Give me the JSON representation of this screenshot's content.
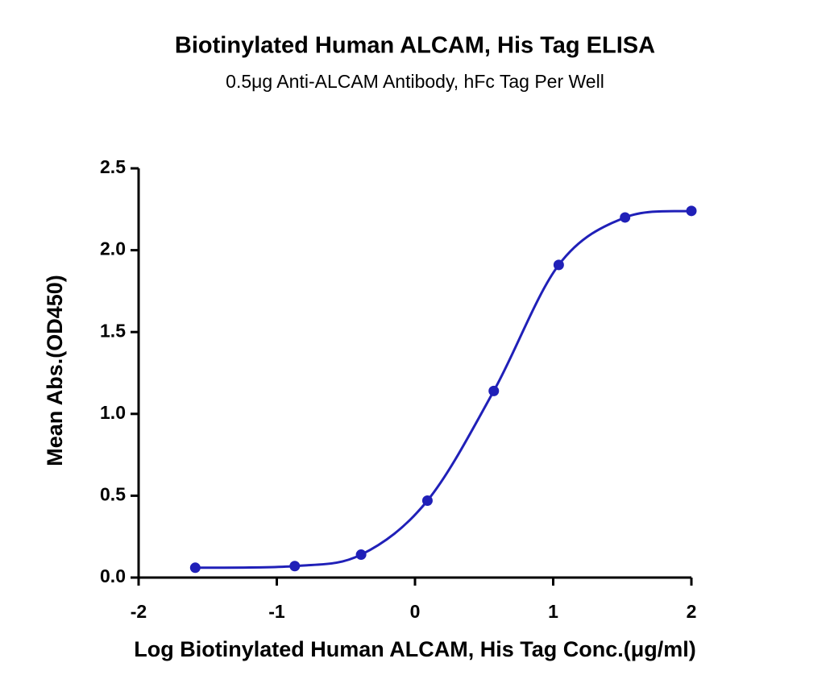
{
  "chart_data": {
    "type": "scatter",
    "title": "Biotinylated Human ALCAM, His Tag ELISA",
    "subtitle": "0.5μg Anti-ALCAM Antibody, hFc Tag Per Well",
    "x_label": "Log Biotinylated Human ALCAM, His Tag Conc.(μg/ml)",
    "y_label": "Mean Abs.(OD450)",
    "xlim": [
      -2,
      2
    ],
    "ylim": [
      0,
      2.5
    ],
    "xticks": [
      -2,
      -1,
      0,
      1,
      2
    ],
    "yticks": [
      {
        "value": 0,
        "label": "0.0"
      },
      0.5,
      {
        "value": 1,
        "label": "1.0"
      },
      1.5,
      {
        "value": 2,
        "label": "2.0"
      },
      2.5
    ],
    "series": [
      {
        "color": "#2020b8",
        "x": [
          -1.59,
          -0.87,
          -0.39,
          0.09,
          0.57,
          1.04,
          1.52,
          2.0
        ],
        "values": [
          0.06,
          0.07,
          0.14,
          0.47,
          1.14,
          1.91,
          2.2,
          2.24
        ]
      }
    ],
    "fit_line": true
  }
}
